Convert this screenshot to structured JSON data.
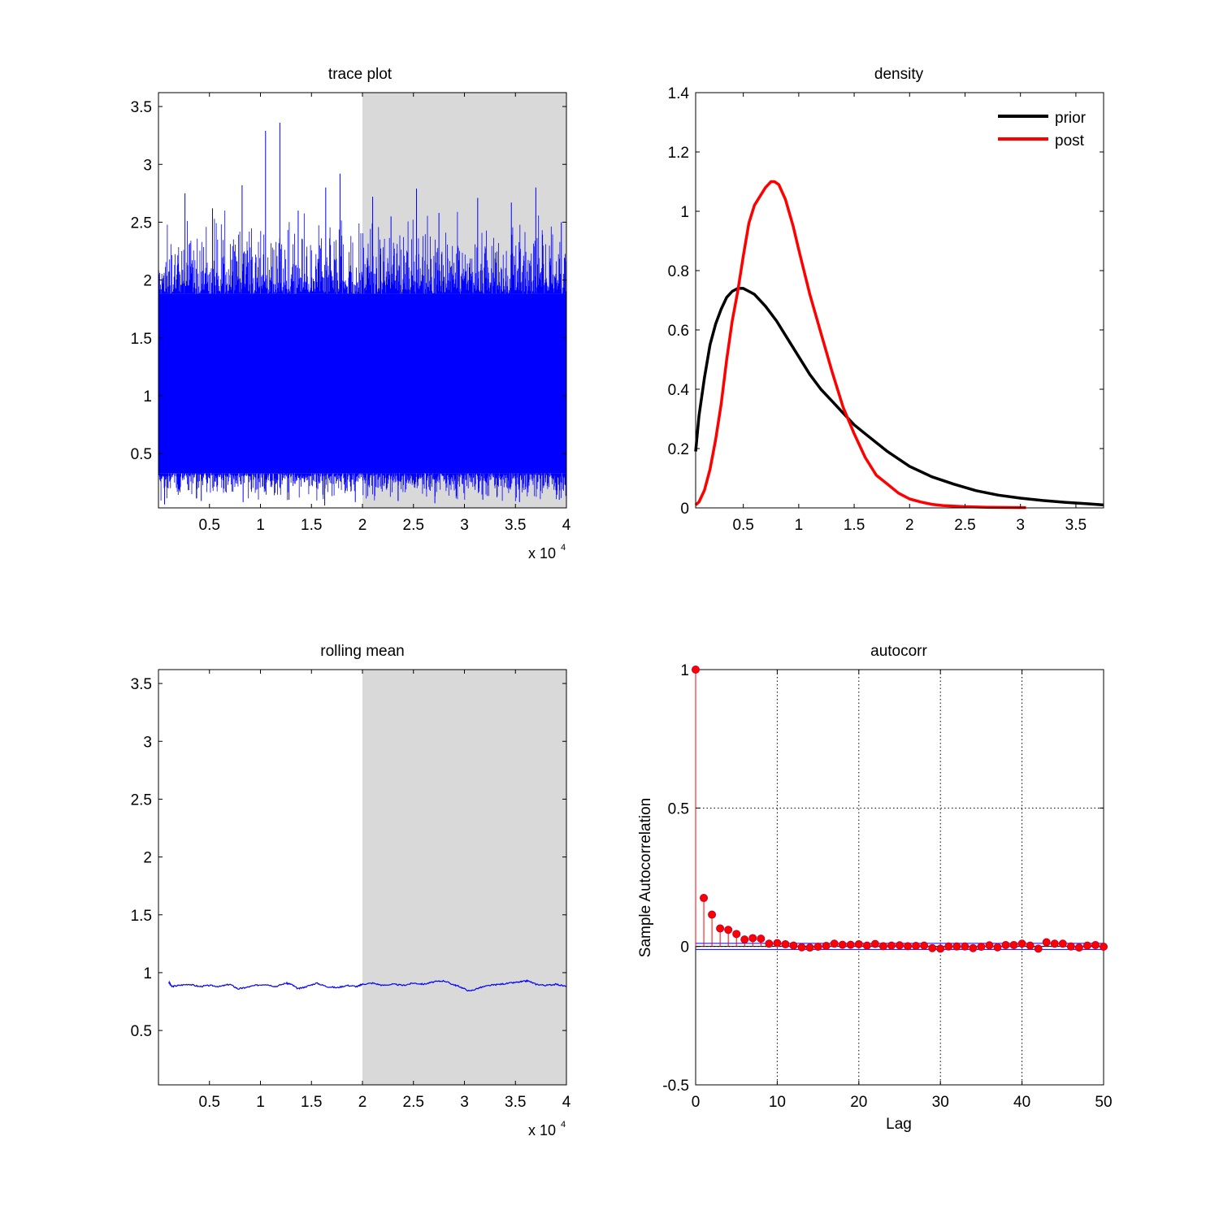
{
  "colors": {
    "trace": "#0000ff",
    "post": "#ff0000",
    "prior": "#000000",
    "burnin_shade": "#d9d9d9",
    "stem_marker": "#ff0000",
    "stem_marker_edge": "#c00030",
    "conf_bound": "#0000ff"
  },
  "chart_data": [
    {
      "id": "trace",
      "type": "line",
      "title": "trace plot",
      "xlabel": "",
      "ylabel": "",
      "xlim": [
        0,
        40000
      ],
      "ylim": [
        0.03,
        3.62
      ],
      "xticks": [
        5000,
        10000,
        15000,
        20000,
        25000,
        30000,
        35000,
        40000
      ],
      "xtick_labels": [
        "0.5",
        "1",
        "1.5",
        "2",
        "2.5",
        "3",
        "3.5",
        "4"
      ],
      "yticks": [
        0.5,
        1,
        1.5,
        2,
        2.5,
        3,
        3.5
      ],
      "ytick_labels": [
        "0.5",
        "1",
        "1.5",
        "2",
        "2.5",
        "3",
        "3.5"
      ],
      "x_exponent_label": "x 10",
      "x_exponent": "4",
      "shaded_region": [
        20000,
        40000
      ],
      "band": {
        "lower": 0.33,
        "upper": 1.88
      },
      "spikes": [
        {
          "x": 10500,
          "y": 3.29
        },
        {
          "x": 11900,
          "y": 3.36
        },
        {
          "x": 17800,
          "y": 2.92
        },
        {
          "x": 8200,
          "y": 2.82
        },
        {
          "x": 2600,
          "y": 2.75
        },
        {
          "x": 16400,
          "y": 2.8
        },
        {
          "x": 25300,
          "y": 2.79
        },
        {
          "x": 37000,
          "y": 2.8
        },
        {
          "x": 21000,
          "y": 2.72
        },
        {
          "x": 31300,
          "y": 2.71
        },
        {
          "x": 13700,
          "y": 2.6
        },
        {
          "x": 5300,
          "y": 2.62
        },
        {
          "x": 27500,
          "y": 2.58
        },
        {
          "x": 34600,
          "y": 2.67
        },
        {
          "x": 39500,
          "y": 2.5
        },
        {
          "x": 22800,
          "y": 2.55
        }
      ],
      "low_spikes": [
        {
          "x": 600,
          "y": 0.06
        },
        {
          "x": 4200,
          "y": 0.09
        },
        {
          "x": 8300,
          "y": 0.08
        },
        {
          "x": 12800,
          "y": 0.1
        },
        {
          "x": 16300,
          "y": 0.05
        },
        {
          "x": 19300,
          "y": 0.08
        },
        {
          "x": 23500,
          "y": 0.09
        },
        {
          "x": 27100,
          "y": 0.07
        },
        {
          "x": 31800,
          "y": 0.1
        },
        {
          "x": 35400,
          "y": 0.08
        },
        {
          "x": 39300,
          "y": 0.1
        }
      ]
    },
    {
      "id": "density",
      "type": "line",
      "title": "density",
      "xlabel": "",
      "ylabel": "",
      "xlim": [
        0.07,
        3.75
      ],
      "ylim": [
        0,
        1.4
      ],
      "xticks": [
        0.5,
        1,
        1.5,
        2,
        2.5,
        3,
        3.5
      ],
      "xtick_labels": [
        "0.5",
        "1",
        "1.5",
        "2",
        "2.5",
        "3",
        "3.5"
      ],
      "yticks": [
        0,
        0.2,
        0.4,
        0.6,
        0.8,
        1,
        1.2,
        1.4
      ],
      "ytick_labels": [
        "0",
        "0.2",
        "0.4",
        "0.6",
        "0.8",
        "1",
        "1.2",
        "1.4"
      ],
      "legend_position": "top-right",
      "series": [
        {
          "name": "prior",
          "color_key": "prior",
          "x": [
            0.07,
            0.1,
            0.15,
            0.2,
            0.25,
            0.3,
            0.35,
            0.4,
            0.45,
            0.5,
            0.55,
            0.6,
            0.7,
            0.8,
            0.9,
            1.0,
            1.1,
            1.2,
            1.3,
            1.4,
            1.5,
            1.6,
            1.8,
            2.0,
            2.2,
            2.4,
            2.6,
            2.8,
            3.0,
            3.2,
            3.4,
            3.6,
            3.75
          ],
          "y": [
            0.19,
            0.31,
            0.44,
            0.55,
            0.62,
            0.67,
            0.71,
            0.73,
            0.74,
            0.74,
            0.73,
            0.72,
            0.68,
            0.63,
            0.57,
            0.51,
            0.45,
            0.4,
            0.36,
            0.32,
            0.28,
            0.25,
            0.19,
            0.14,
            0.105,
            0.08,
            0.058,
            0.043,
            0.033,
            0.025,
            0.019,
            0.014,
            0.01
          ]
        },
        {
          "name": "post",
          "color_key": "post",
          "x": [
            0.07,
            0.1,
            0.15,
            0.2,
            0.25,
            0.3,
            0.35,
            0.4,
            0.45,
            0.5,
            0.55,
            0.6,
            0.65,
            0.7,
            0.75,
            0.78,
            0.82,
            0.88,
            0.95,
            1.0,
            1.1,
            1.2,
            1.3,
            1.4,
            1.5,
            1.6,
            1.7,
            1.8,
            1.9,
            2.0,
            2.1,
            2.2,
            2.3,
            2.5,
            2.7,
            3.0,
            3.05
          ],
          "y": [
            0.01,
            0.02,
            0.06,
            0.13,
            0.23,
            0.35,
            0.5,
            0.63,
            0.73,
            0.85,
            0.96,
            1.02,
            1.05,
            1.08,
            1.1,
            1.1,
            1.09,
            1.04,
            0.95,
            0.87,
            0.72,
            0.59,
            0.46,
            0.34,
            0.25,
            0.17,
            0.11,
            0.08,
            0.05,
            0.03,
            0.02,
            0.012,
            0.008,
            0.004,
            0.002,
            0.001,
            0.001
          ]
        }
      ]
    },
    {
      "id": "rolling",
      "type": "line",
      "title": "rolling mean",
      "xlabel": "",
      "ylabel": "",
      "xlim": [
        0,
        40000
      ],
      "ylim": [
        0.03,
        3.62
      ],
      "xticks": [
        5000,
        10000,
        15000,
        20000,
        25000,
        30000,
        35000,
        40000
      ],
      "xtick_labels": [
        "0.5",
        "1",
        "1.5",
        "2",
        "2.5",
        "3",
        "3.5",
        "4"
      ],
      "yticks": [
        0.5,
        1,
        1.5,
        2,
        2.5,
        3,
        3.5
      ],
      "ytick_labels": [
        "0.5",
        "1",
        "1.5",
        "2",
        "2.5",
        "3",
        "3.5"
      ],
      "x_exponent_label": "x 10",
      "x_exponent": "4",
      "shaded_region": [
        20000,
        40000
      ],
      "series": [
        {
          "name": "",
          "color_key": "trace",
          "x": [
            1000,
            1300,
            2000,
            3000,
            4000,
            5000,
            6000,
            7000,
            7800,
            8500,
            9500,
            10500,
            11500,
            12500,
            13000,
            13700,
            14500,
            15500,
            16500,
            17500,
            18500,
            19500,
            20000,
            21000,
            22000,
            23000,
            24000,
            25000,
            26000,
            27000,
            28000,
            28800,
            29500,
            30500,
            31500,
            32500,
            33500,
            34500,
            35500,
            36200,
            37000,
            38000,
            39000,
            40000
          ],
          "y": [
            0.92,
            0.88,
            0.89,
            0.9,
            0.88,
            0.89,
            0.88,
            0.9,
            0.86,
            0.87,
            0.89,
            0.9,
            0.88,
            0.91,
            0.9,
            0.86,
            0.88,
            0.91,
            0.88,
            0.87,
            0.89,
            0.88,
            0.9,
            0.91,
            0.89,
            0.9,
            0.89,
            0.91,
            0.9,
            0.92,
            0.93,
            0.9,
            0.88,
            0.84,
            0.87,
            0.89,
            0.9,
            0.91,
            0.92,
            0.93,
            0.9,
            0.89,
            0.9,
            0.88
          ]
        }
      ]
    },
    {
      "id": "autocorr",
      "type": "scatter",
      "subtype": "stem",
      "title": "autocorr",
      "xlabel": "Lag",
      "ylabel": "Sample Autocorrelation",
      "xlim": [
        0,
        50
      ],
      "ylim": [
        -0.5,
        1
      ],
      "xticks": [
        0,
        10,
        20,
        30,
        40,
        50
      ],
      "xtick_labels": [
        "0",
        "10",
        "20",
        "30",
        "40",
        "50"
      ],
      "yticks": [
        -0.5,
        0,
        0.5,
        1
      ],
      "ytick_labels": [
        "-0.5",
        "0",
        "0.5",
        "1"
      ],
      "grid": true,
      "conf_bounds": [
        0.011,
        -0.011
      ],
      "lags": [
        0,
        1,
        2,
        3,
        4,
        5,
        6,
        7,
        8,
        9,
        10,
        11,
        12,
        13,
        14,
        15,
        16,
        17,
        18,
        19,
        20,
        21,
        22,
        23,
        24,
        25,
        26,
        27,
        28,
        29,
        30,
        31,
        32,
        33,
        34,
        35,
        36,
        37,
        38,
        39,
        40,
        41,
        42,
        43,
        44,
        45,
        46,
        47,
        48,
        49,
        50
      ],
      "values": [
        1.0,
        0.175,
        0.115,
        0.065,
        0.06,
        0.045,
        0.025,
        0.03,
        0.028,
        0.01,
        0.012,
        0.008,
        0.003,
        -0.003,
        -0.004,
        -0.001,
        0.002,
        0.01,
        0.006,
        0.006,
        0.008,
        0.003,
        0.009,
        0.001,
        0.003,
        0.004,
        0.001,
        0.002,
        0.003,
        -0.006,
        -0.008,
        0.0,
        0.0,
        0.0,
        -0.006,
        -0.001,
        0.004,
        -0.003,
        0.005,
        0.005,
        0.01,
        0.003,
        -0.008,
        0.015,
        0.01,
        0.01,
        0.0,
        -0.004,
        0.003,
        0.005,
        -0.001
      ]
    }
  ]
}
